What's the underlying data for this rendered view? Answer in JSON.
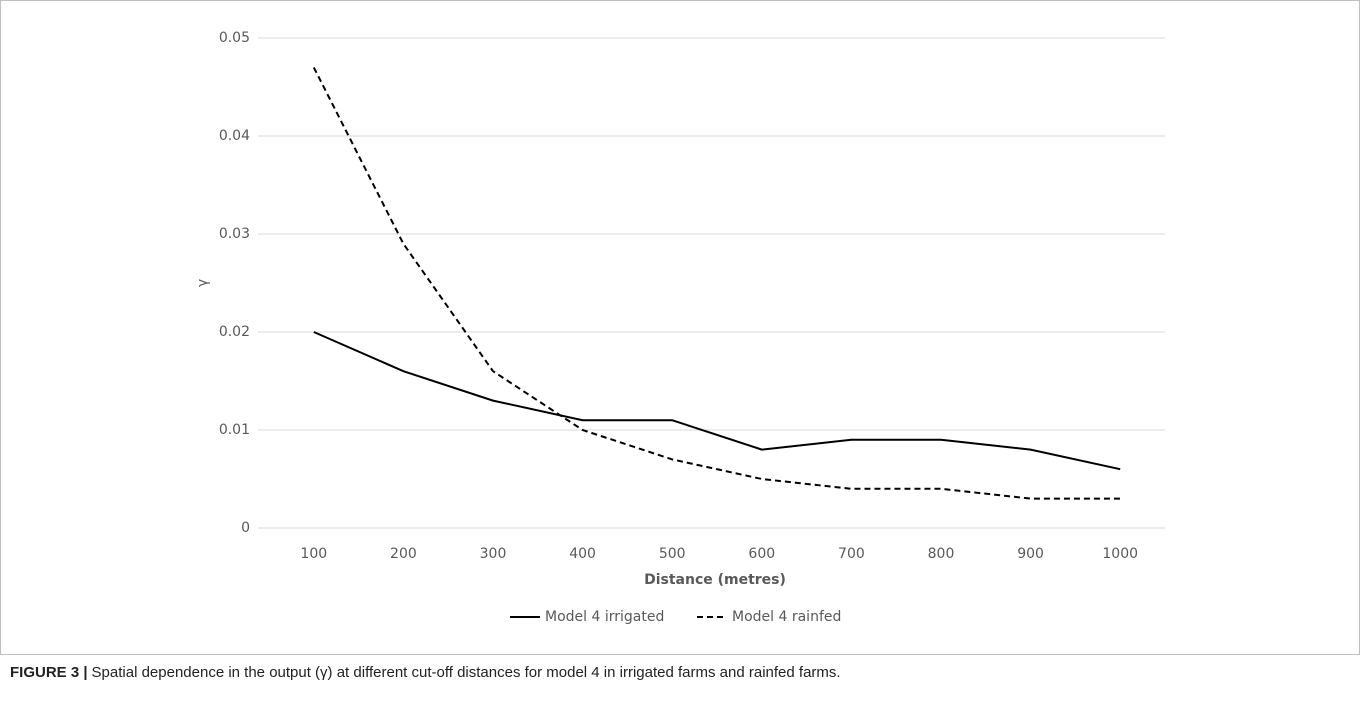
{
  "chart_data": {
    "type": "line",
    "y_label": "γ",
    "x_label": "Distance (metres)",
    "categories": [
      100,
      200,
      300,
      400,
      500,
      600,
      700,
      800,
      900,
      1000
    ],
    "series": [
      {
        "name": "Model 4 irrigated",
        "color": "#000000",
        "line_style": "solid",
        "values": [
          0.02,
          0.016,
          0.013,
          0.011,
          0.011,
          0.008,
          0.009,
          0.009,
          0.008,
          0.006
        ]
      },
      {
        "name": "Model 4 rainfed",
        "color": "#000000",
        "line_style": "dashed",
        "values": [
          0.047,
          0.029,
          0.016,
          0.01,
          0.007,
          0.005,
          0.004,
          0.004,
          0.003,
          0.003
        ]
      }
    ],
    "ylim": [
      0,
      0.05
    ],
    "yticks": [
      0,
      0.01,
      0.02,
      0.03,
      0.04,
      0.05
    ],
    "grid": true,
    "legend": "bottom"
  },
  "caption": {
    "label": "FIGURE 3 |",
    "text": "Spatial dependence in the output (γ) at different cut-off distances for model 4 in irrigated farms and rainfed farms."
  }
}
